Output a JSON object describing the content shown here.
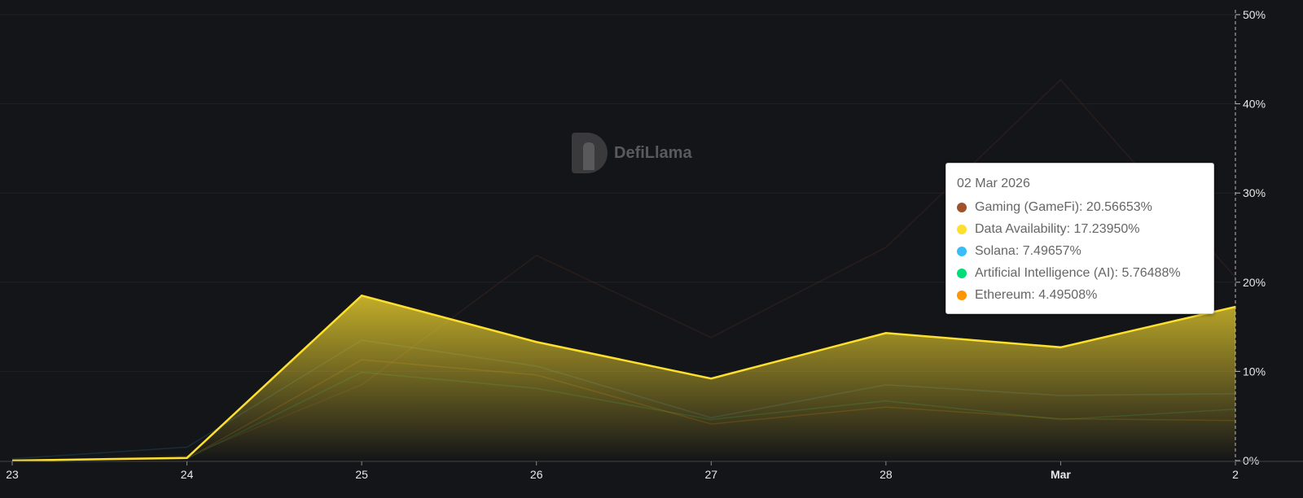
{
  "chart_data": {
    "type": "area",
    "x": [
      "23",
      "24",
      "25",
      "26",
      "27",
      "28",
      "Mar",
      "2"
    ],
    "x_tick_labels": [
      "23",
      "24",
      "25",
      "26",
      "27",
      "28",
      "Mar",
      "2"
    ],
    "y_tick_labels": [
      "0%",
      "10%",
      "20%",
      "30%",
      "40%",
      "50%"
    ],
    "ylim": [
      0,
      50
    ],
    "y_axis_position": "right",
    "grid": true,
    "watermark": "DefiLlama",
    "series": [
      {
        "name": "Gaming (GameFi)",
        "color": "#a0522d",
        "values": [
          0,
          0.5,
          8.5,
          23.0,
          13.8,
          23.9,
          42.7,
          20.56653
        ],
        "highlighted": false
      },
      {
        "name": "Data Availability",
        "color": "#fde02f",
        "values": [
          0,
          0.3,
          18.5,
          13.3,
          9.2,
          14.3,
          12.7,
          17.2395
        ],
        "highlighted": true
      },
      {
        "name": "Solana",
        "color": "#38bdf8",
        "values": [
          0.2,
          1.5,
          13.5,
          10.6,
          4.8,
          8.5,
          7.3,
          7.49657
        ],
        "highlighted": false
      },
      {
        "name": "Artificial Intelligence (AI)",
        "color": "#00dd77",
        "values": [
          0,
          0.2,
          9.9,
          8.1,
          4.6,
          6.7,
          4.6,
          5.76488
        ],
        "highlighted": false
      },
      {
        "name": "Ethereum",
        "color": "#ff9500",
        "values": [
          0,
          0.2,
          11.3,
          9.6,
          4.1,
          6.0,
          4.7,
          4.49508
        ],
        "highlighted": false
      }
    ],
    "tooltip": {
      "date": "02 Mar 2026",
      "rows": [
        {
          "label": "Gaming (GameFi): 20.56653%",
          "color": "#a0522d"
        },
        {
          "label": "Data Availability: 17.23950%",
          "color": "#fde02f"
        },
        {
          "label": "Solana: 7.49657%",
          "color": "#38bdf8"
        },
        {
          "label": "Artificial Intelligence (AI): 5.76488%",
          "color": "#00dd77"
        },
        {
          "label": "Ethereum: 4.49508%",
          "color": "#ff9500"
        }
      ]
    }
  }
}
